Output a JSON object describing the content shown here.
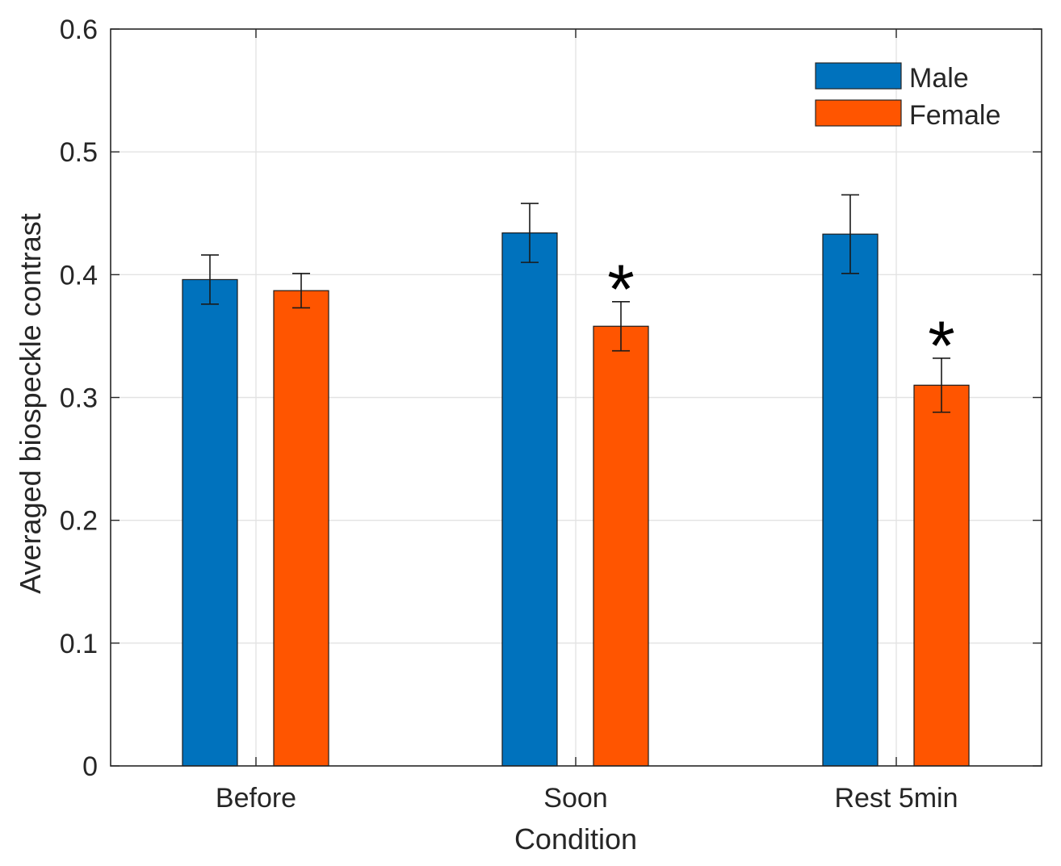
{
  "chart_data": {
    "type": "bar",
    "title": "",
    "xlabel": "Condition",
    "ylabel": "Averaged biospeckle contrast",
    "categories": [
      "Before",
      "Soon",
      "Rest 5min"
    ],
    "ylim": [
      0,
      0.6
    ],
    "yticks": [
      0,
      0.1,
      0.2,
      0.3,
      0.4,
      0.5,
      0.6
    ],
    "ytick_labels": [
      "0",
      "0.1",
      "0.2",
      "0.3",
      "0.4",
      "0.5",
      "0.6"
    ],
    "grid": true,
    "legend_position": "top-right",
    "series": [
      {
        "name": "Male",
        "color": "#0072BD",
        "values": [
          0.396,
          0.434,
          0.433
        ],
        "error": [
          0.02,
          0.024,
          0.032
        ]
      },
      {
        "name": "Female",
        "color": "#FF5500",
        "values": [
          0.387,
          0.358,
          0.31
        ],
        "error": [
          0.014,
          0.02,
          0.022
        ]
      }
    ],
    "annotations": [
      {
        "series": "Female",
        "category": "Soon",
        "text": "*"
      },
      {
        "series": "Female",
        "category": "Rest 5min",
        "text": "*"
      }
    ]
  }
}
